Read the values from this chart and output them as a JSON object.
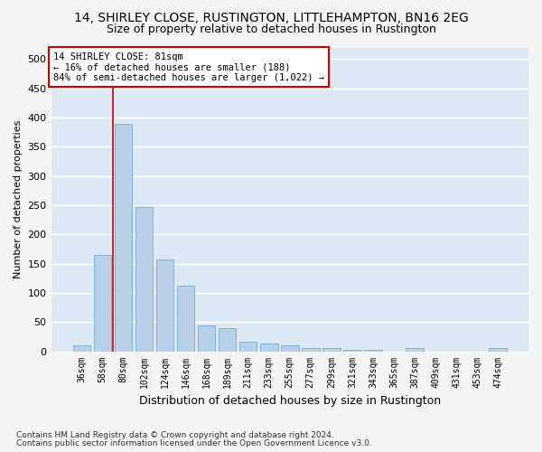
{
  "title": "14, SHIRLEY CLOSE, RUSTINGTON, LITTLEHAMPTON, BN16 2EG",
  "subtitle": "Size of property relative to detached houses in Rustington",
  "xlabel": "Distribution of detached houses by size in Rustington",
  "ylabel": "Number of detached properties",
  "categories": [
    "36sqm",
    "58sqm",
    "80sqm",
    "102sqm",
    "124sqm",
    "146sqm",
    "168sqm",
    "189sqm",
    "211sqm",
    "233sqm",
    "255sqm",
    "277sqm",
    "299sqm",
    "321sqm",
    "343sqm",
    "365sqm",
    "387sqm",
    "409sqm",
    "431sqm",
    "453sqm",
    "474sqm"
  ],
  "values": [
    10,
    165,
    390,
    247,
    157,
    113,
    44,
    40,
    17,
    13,
    10,
    6,
    5,
    3,
    2,
    0,
    5,
    0,
    0,
    0,
    5
  ],
  "bar_color": "#b8d0e8",
  "bar_edge_color": "#7aadd4",
  "property_line_label": "14 SHIRLEY CLOSE: 81sqm",
  "annotation_line1": "← 16% of detached houses are smaller (188)",
  "annotation_line2": "84% of semi-detached houses are larger (1,022) →",
  "annotation_box_color": "#ffffff",
  "annotation_box_edge": "#cc0000",
  "vline_color": "#cc0000",
  "fig_bg_color": "#f5f5f5",
  "plot_bg_color": "#dce9f5",
  "grid_color": "#ffffff",
  "ylim": [
    0,
    520
  ],
  "yticks": [
    0,
    50,
    100,
    150,
    200,
    250,
    300,
    350,
    400,
    450,
    500
  ],
  "footnote1": "Contains HM Land Registry data © Crown copyright and database right 2024.",
  "footnote2": "Contains public sector information licensed under the Open Government Licence v3.0.",
  "title_fontsize": 10,
  "subtitle_fontsize": 9
}
